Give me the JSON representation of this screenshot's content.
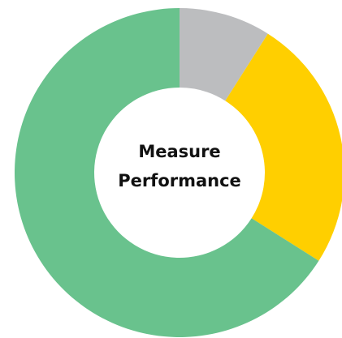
{
  "chart_data": {
    "type": "donut",
    "center_text": [
      "Measure",
      "Performance"
    ],
    "categories": [
      null,
      null,
      null
    ],
    "values": [
      9,
      25,
      66
    ],
    "colors": [
      "#bcbdbf",
      "#ffcf00",
      "#69c28d"
    ]
  }
}
